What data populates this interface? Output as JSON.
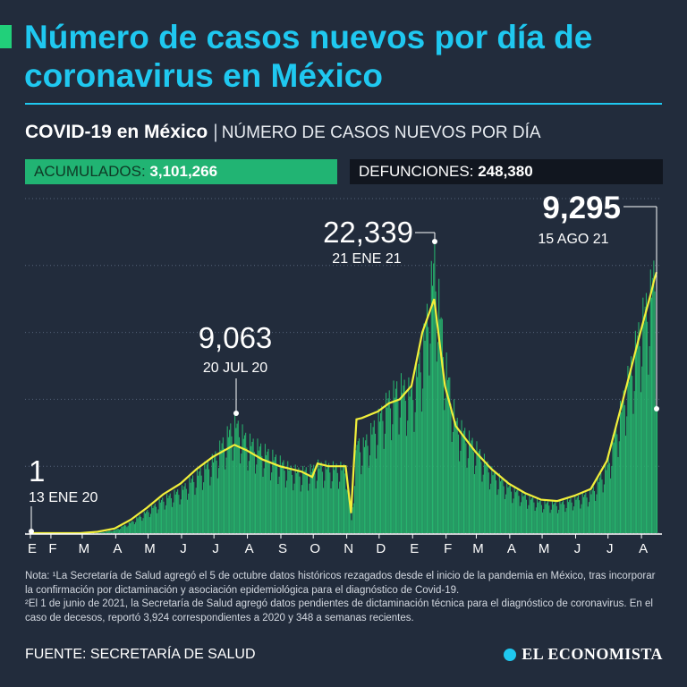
{
  "title": "Número de casos nuevos por día de coronavirus en México",
  "subtitle": {
    "strong": "COVID-19 en México",
    "separator": "|",
    "light": "NÚMERO DE CASOS NUEVOS POR DÍA"
  },
  "stats": {
    "cases_label": "ACUMULADOS:",
    "cases_value": "3,101,266",
    "deaths_label": "DEFUNCIONES:",
    "deaths_value": "248,380"
  },
  "colors": {
    "background": "#222c3c",
    "title": "#1fc8f0",
    "bars": "#27b56e",
    "trend": "#f2ef3a",
    "cases_box": "#21b473",
    "deaths_box": "#11161f"
  },
  "chart_data": {
    "type": "bar",
    "title": "",
    "xlabel": "",
    "ylabel": "",
    "ylim": [
      0,
      25000
    ],
    "grid": true,
    "axis_tick_labels": [
      "E",
      "F",
      "M",
      "A",
      "M",
      "J",
      "J",
      "A",
      "S",
      "O",
      "N",
      "D",
      "E",
      "F",
      "M",
      "A",
      "M",
      "J",
      "J",
      "A"
    ],
    "x_range": [
      "2020-01-13",
      "2021-08-15"
    ],
    "series": [
      {
        "type": "bar",
        "points": [
          [
            "2020-01-13",
            1
          ],
          [
            "2020-02-28",
            5
          ],
          [
            "2020-03-15",
            20
          ],
          [
            "2020-03-31",
            250
          ],
          [
            "2020-04-15",
            900
          ],
          [
            "2020-04-30",
            1800
          ],
          [
            "2020-05-15",
            2800
          ],
          [
            "2020-05-31",
            3500
          ],
          [
            "2020-06-15",
            4800
          ],
          [
            "2020-06-30",
            6000
          ],
          [
            "2020-07-20",
            9063
          ],
          [
            "2020-07-31",
            7600
          ],
          [
            "2020-08-15",
            6800
          ],
          [
            "2020-08-31",
            5800
          ],
          [
            "2020-09-10",
            5200
          ],
          [
            "2020-09-20",
            5000
          ],
          [
            "2020-09-30",
            5200
          ],
          [
            "2020-10-05",
            5500
          ],
          [
            "2020-10-15",
            5400
          ],
          [
            "2020-10-31",
            5300
          ],
          [
            "2020-11-05",
            1000
          ],
          [
            "2020-11-10",
            7500
          ],
          [
            "2020-11-15",
            7000
          ],
          [
            "2020-11-30",
            9300
          ],
          [
            "2020-12-10",
            11000
          ],
          [
            "2020-12-20",
            12000
          ],
          [
            "2020-12-31",
            11500
          ],
          [
            "2021-01-10",
            15000
          ],
          [
            "2021-01-21",
            22339
          ],
          [
            "2021-01-31",
            14000
          ],
          [
            "2021-02-10",
            9000
          ],
          [
            "2021-02-28",
            7000
          ],
          [
            "2021-03-15",
            5000
          ],
          [
            "2021-03-31",
            3800
          ],
          [
            "2021-04-15",
            3000
          ],
          [
            "2021-04-30",
            2500
          ],
          [
            "2021-05-15",
            2400
          ],
          [
            "2021-05-31",
            2800
          ],
          [
            "2021-06-15",
            3300
          ],
          [
            "2021-06-30",
            5500
          ],
          [
            "2021-07-15",
            11000
          ],
          [
            "2021-07-31",
            17000
          ],
          [
            "2021-08-10",
            20000
          ],
          [
            "2021-08-13",
            21500
          ],
          [
            "2021-08-15",
            9295
          ]
        ]
      },
      {
        "type": "line",
        "points": [
          [
            "2020-01-13",
            0
          ],
          [
            "2020-02-28",
            0
          ],
          [
            "2020-03-15",
            100
          ],
          [
            "2020-03-31",
            350
          ],
          [
            "2020-04-15",
            1000
          ],
          [
            "2020-04-30",
            1900
          ],
          [
            "2020-05-15",
            2900
          ],
          [
            "2020-05-31",
            3700
          ],
          [
            "2020-06-15",
            4800
          ],
          [
            "2020-06-30",
            5700
          ],
          [
            "2020-07-20",
            6600
          ],
          [
            "2020-07-31",
            6200
          ],
          [
            "2020-08-15",
            5500
          ],
          [
            "2020-08-31",
            5000
          ],
          [
            "2020-09-10",
            4800
          ],
          [
            "2020-09-20",
            4600
          ],
          [
            "2020-09-30",
            4200
          ],
          [
            "2020-10-05",
            5200
          ],
          [
            "2020-10-15",
            5000
          ],
          [
            "2020-10-31",
            5000
          ],
          [
            "2020-11-05",
            1500
          ],
          [
            "2020-11-10",
            8500
          ],
          [
            "2020-11-15",
            8600
          ],
          [
            "2020-11-30",
            9100
          ],
          [
            "2020-12-10",
            9700
          ],
          [
            "2020-12-20",
            10000
          ],
          [
            "2020-12-31",
            11000
          ],
          [
            "2021-01-10",
            15000
          ],
          [
            "2021-01-21",
            17500
          ],
          [
            "2021-01-31",
            11000
          ],
          [
            "2021-02-10",
            8000
          ],
          [
            "2021-02-28",
            6100
          ],
          [
            "2021-03-15",
            4800
          ],
          [
            "2021-03-31",
            3700
          ],
          [
            "2021-04-15",
            3000
          ],
          [
            "2021-04-30",
            2500
          ],
          [
            "2021-05-15",
            2400
          ],
          [
            "2021-05-31",
            2800
          ],
          [
            "2021-06-15",
            3300
          ],
          [
            "2021-06-30",
            5400
          ],
          [
            "2021-07-15",
            10000
          ],
          [
            "2021-07-31",
            15000
          ],
          [
            "2021-08-10",
            18000
          ],
          [
            "2021-08-13",
            19000
          ],
          [
            "2021-08-15",
            19500
          ]
        ]
      }
    ],
    "annotations": [
      {
        "value": "1",
        "date_label": "13 ENE 20"
      },
      {
        "value": "9,063",
        "date_label": "20 JUL 20"
      },
      {
        "value": "22,339",
        "date_label": "21 ENE 21"
      },
      {
        "value": "9,295",
        "date_label": "15 AGO 21"
      }
    ]
  },
  "note": {
    "line1": "Nota: ¹La Secretaría de Salud agregó el 5 de octubre datos históricos rezagados desde el inicio de la pandemia en México, tras incorporar la confirmación por dictaminación y asociación epidemiológica para el diagnóstico de Covid-19.",
    "line2": "²El 1 de junio de 2021, la Secretaría de Salud agregó datos pendientes de dictaminación técnica para el diagnóstico de coronavirus. En el caso de decesos, reportó 3,924 correspondientes a 2020 y 348 a semanas recientes."
  },
  "source": "FUENTE: SECRETARÍA DE SALUD",
  "logo_text": "EL ECONOMISTA"
}
